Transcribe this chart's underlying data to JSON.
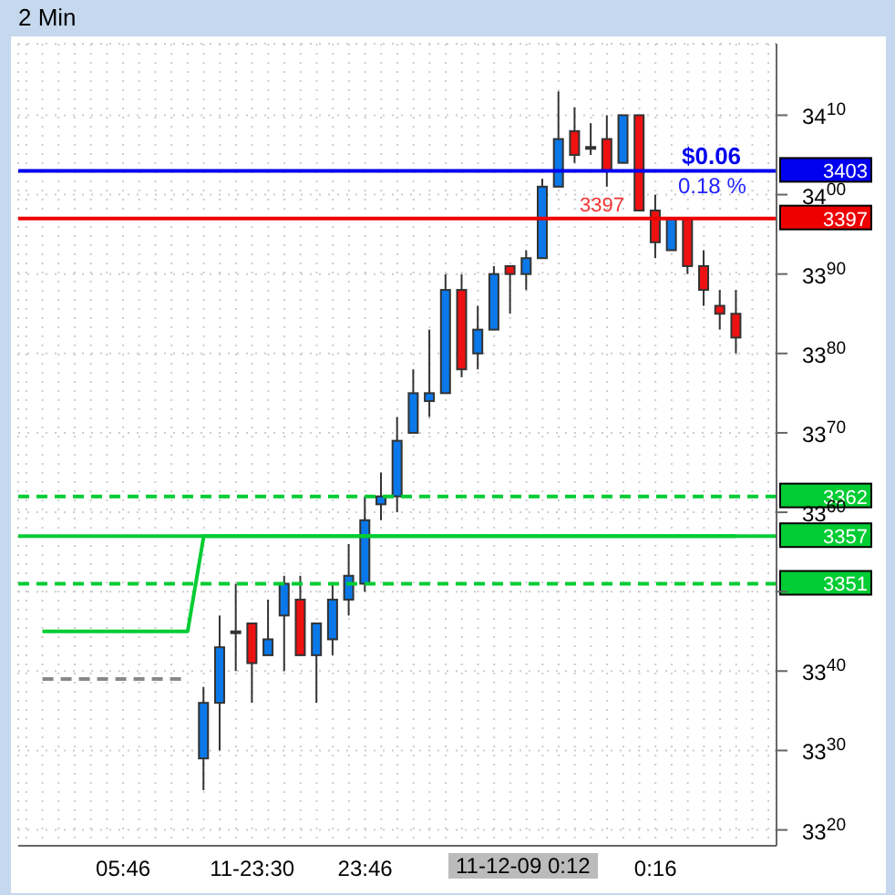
{
  "chart_data": {
    "type": "candlestick",
    "title": "2 Min",
    "categories": [
      null,
      null,
      null,
      null,
      null,
      null,
      "05:46",
      null,
      null,
      null,
      null,
      null,
      null,
      null,
      "11-23:30",
      null,
      null,
      null,
      null,
      null,
      null,
      "23:46",
      null,
      null,
      null,
      null,
      null,
      null,
      null,
      null,
      null,
      null,
      null,
      null,
      null,
      null,
      null,
      null,
      null,
      "0:16",
      null,
      null,
      null,
      null,
      null,
      null,
      null
    ],
    "ohlc": [
      null,
      null,
      null,
      null,
      null,
      null,
      null,
      null,
      null,
      null,
      null,
      [
        3329,
        3338,
        3325,
        3336
      ],
      [
        3336,
        3347,
        3330,
        3343
      ],
      [
        3345,
        3351,
        3340,
        3345
      ],
      [
        3346,
        3346,
        3336,
        3341
      ],
      [
        3342,
        3349,
        3342,
        3344
      ],
      [
        3347,
        3352,
        3340,
        3351
      ],
      [
        3349,
        3352,
        3342,
        3342
      ],
      [
        3342,
        3346,
        3336,
        3346
      ],
      [
        3344,
        3351,
        3342,
        3349
      ],
      [
        3349,
        3356,
        3347,
        3352
      ],
      [
        3351,
        3362,
        3350,
        3359
      ],
      [
        3361,
        3365,
        3359,
        3362
      ],
      [
        3362,
        3372,
        3360,
        3369
      ],
      [
        3370,
        3378,
        3370,
        3375
      ],
      [
        3374,
        3383,
        3372,
        3375
      ],
      [
        3375,
        3390,
        3375,
        3388
      ],
      [
        3388,
        3390,
        3377,
        3378
      ],
      [
        3380,
        3386,
        3378,
        3383
      ],
      [
        3383,
        3391,
        3383,
        3390
      ],
      [
        3391,
        3391,
        3385,
        3390
      ],
      [
        3390,
        3393,
        3388,
        3392
      ],
      [
        3392,
        3402,
        3392,
        3401
      ],
      [
        3401,
        3413,
        3401,
        3407
      ],
      [
        3408,
        3411,
        3404,
        3405
      ],
      [
        3406,
        3409,
        3405,
        3406
      ],
      [
        3407,
        3410,
        3401,
        3403
      ],
      [
        3404,
        3410,
        3404,
        3410
      ],
      [
        3410,
        3410,
        3398,
        3398
      ],
      [
        3398,
        3400,
        3392,
        3394
      ],
      [
        3393,
        3397,
        3393,
        3397
      ],
      [
        3397,
        3397,
        3390,
        3391
      ],
      [
        3391,
        3393,
        3386,
        3388
      ],
      [
        3386,
        3388,
        3383,
        3385
      ],
      [
        3385,
        3388,
        3380,
        3382
      ],
      null,
      null
    ],
    "series": [
      {
        "type": "line",
        "color": "#00cc33",
        "line_style": "solid",
        "values": [
          null,
          3345,
          3345,
          3345,
          3345,
          3345,
          3345,
          3345,
          3345,
          3345,
          3345,
          3357,
          3357,
          3357,
          3357,
          3357,
          3357,
          3357,
          3357,
          3357,
          3357,
          3357,
          3357,
          3357,
          3357,
          3357,
          3357,
          3357,
          3357,
          3357,
          3357,
          3357,
          3357,
          3357,
          3357,
          3357,
          3357,
          3357,
          3357,
          3357,
          3357,
          3357,
          3357,
          3357,
          3357,
          null,
          null
        ]
      },
      {
        "type": "line",
        "color": "#888888",
        "line_style": "dashed",
        "values": [
          null,
          3339,
          3339,
          3339,
          3339,
          3339,
          3339,
          3339,
          3339,
          3339,
          3339,
          null,
          null,
          null,
          null,
          null,
          null,
          null,
          null,
          null,
          null,
          null,
          null,
          null,
          null,
          null,
          null,
          null,
          null,
          null,
          null,
          null,
          null,
          null,
          null,
          null,
          null,
          null,
          null,
          null,
          null,
          null,
          null,
          null,
          null,
          null,
          null
        ]
      }
    ],
    "ref_lines": [
      {
        "axis": "y",
        "value": 3403,
        "label": "3403",
        "color": "#0000ee",
        "line_style": "solid"
      },
      {
        "axis": "y",
        "value": 3397,
        "label": "3397",
        "color": "#ee0000",
        "line_style": "solid"
      },
      {
        "axis": "y",
        "value": 3362,
        "label": "3362",
        "color": "#00cc33",
        "line_style": "dashed"
      },
      {
        "axis": "y",
        "value": 3357,
        "label": "3357",
        "color": "#00cc33",
        "line_style": "solid"
      },
      {
        "axis": "y",
        "value": 3351,
        "label": "3351",
        "color": "#00cc33",
        "line_style": "dashed"
      }
    ],
    "annotations": [
      "$0.06",
      "0.18 %",
      "3397",
      "11-12-09 0:12"
    ],
    "ylim": [
      3318,
      3419
    ],
    "yticks": [
      3320,
      3330,
      3340,
      {
        "value": 3350,
        "label": null
      },
      3360,
      3370,
      3380,
      3390,
      3400,
      3410
    ],
    "grid": true
  }
}
